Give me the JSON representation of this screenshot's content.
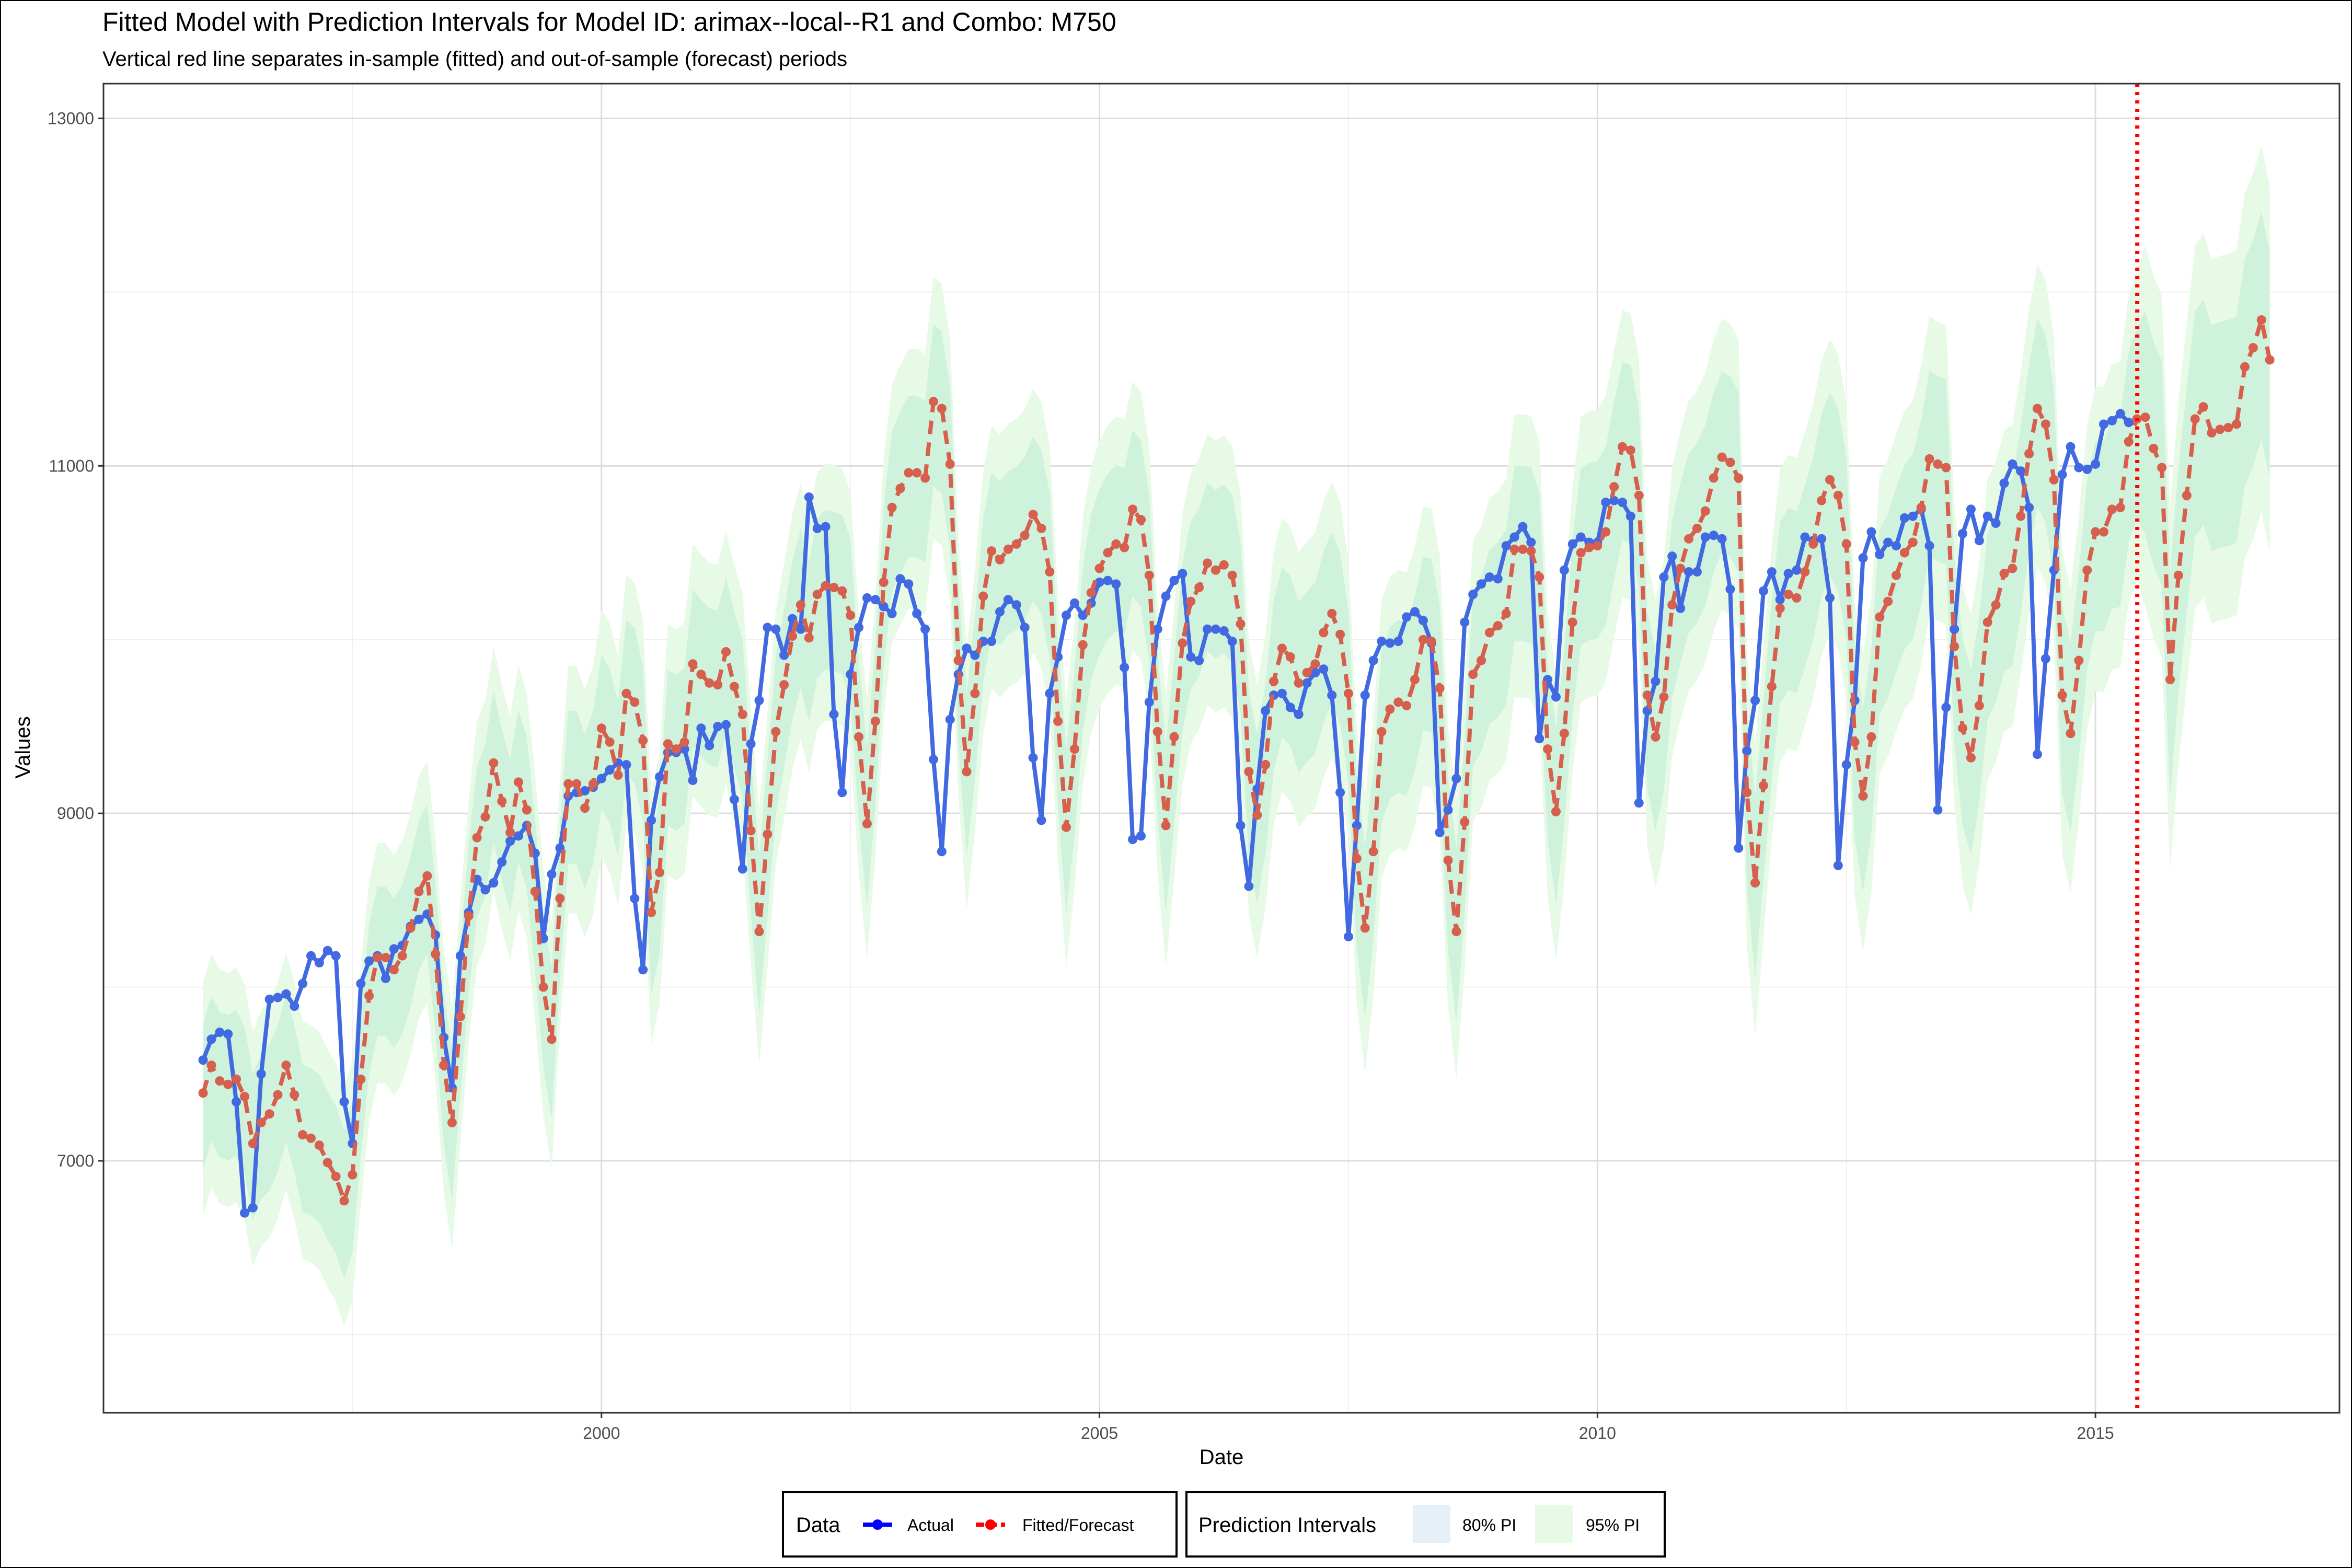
{
  "chart_data": {
    "type": "line",
    "title": "Fitted Model with Prediction Intervals for Model ID: arimax--local--R1 and Combo: M750",
    "subtitle": "Vertical red line separates in-sample (fitted) and out-of-sample (forecast) periods",
    "xlabel": "Date",
    "ylabel": "Values",
    "x_range": [
      1995.0,
      2017.45
    ],
    "ylim": [
      5550,
      13200
    ],
    "x_ticks": [
      {
        "value": 2000,
        "label": "2000"
      },
      {
        "value": 2005,
        "label": "2005"
      },
      {
        "value": 2010,
        "label": "2010"
      },
      {
        "value": 2015,
        "label": "2015"
      }
    ],
    "y_ticks": [
      {
        "value": 7000,
        "label": "7000"
      },
      {
        "value": 9000,
        "label": "9000"
      },
      {
        "value": 11000,
        "label": "11000"
      },
      {
        "value": 13000,
        "label": "13000"
      }
    ],
    "grid": true,
    "split_date": 2015.42,
    "colors": {
      "actual": "#4169e1",
      "actual_legend": "#0000ff",
      "fitted": "#d6604d",
      "fitted_legend": "#ff0000",
      "pi80": "#e6f0f8",
      "pi95": "#e6fae6",
      "band_fill": "#c9f0d8",
      "split_line": "#ff0000"
    },
    "legend": {
      "placement": "bottom",
      "data_title": "Data",
      "actual_label": "Actual",
      "fitted_label": "Fitted/Forecast",
      "pi_title": "Prediction Intervals",
      "pi80_label": "80% PI",
      "pi95_label": "95% PI"
    },
    "actual_start": 1996.0,
    "actual": [
      7580,
      7700,
      7740,
      7730,
      7340,
      6700,
      6730,
      7500,
      7930,
      7940,
      7960,
      7890,
      8020,
      8180,
      8140,
      8210,
      8180,
      7340,
      7100,
      8020,
      8150,
      8180,
      8050,
      8220,
      8240,
      8350,
      8390,
      8420,
      8300,
      7710,
      7420,
      8180,
      8430,
      8620,
      8560,
      8600,
      8720,
      8840,
      8870,
      8930,
      8770,
      8280,
      8650,
      8800,
      9100,
      9120,
      9130,
      9150,
      9200,
      9250,
      9290,
      9280,
      8510,
      8100,
      8960,
      9210,
      9350,
      9350,
      9370,
      9190,
      9490,
      9390,
      9500,
      9510,
      9080,
      8680,
      9400,
      9650,
      10070,
      10060,
      9910,
      10120,
      10060,
      10820,
      10640,
      10650,
      9570,
      9120,
      9800,
      10070,
      10240,
      10230,
      10190,
      10150,
      10350,
      10320,
      10150,
      10060,
      9310,
      8780,
      9540,
      9800,
      9950,
      9910,
      9990,
      9990,
      10160,
      10230,
      10200,
      10070,
      9320,
      8960,
      9690,
      9900,
      10140,
      10210,
      10140,
      10210,
      10330,
      10340,
      10320,
      9840,
      8850,
      8870,
      9640,
      10060,
      10250,
      10340,
      10380,
      9900,
      9880,
      10060,
      10060,
      10050,
      9990,
      8930,
      8580,
      9140,
      9590,
      9680,
      9690,
      9610,
      9570,
      9750,
      9810,
      9830,
      9680,
      9120,
      8290,
      8930,
      9680,
      9880,
      9990,
      9980,
      9990,
      10130,
      10160,
      10110,
      9980,
      8890,
      9020,
      9200,
      10100,
      10260,
      10320,
      10360,
      10350,
      10540,
      10590,
      10650,
      10560,
      9430,
      9770,
      9670,
      10400,
      10550,
      10590,
      10560,
      10560,
      10790,
      10800,
      10790,
      10710,
      9060,
      9590,
      9760,
      10360,
      10480,
      10180,
      10390,
      10390,
      10590,
      10600,
      10580,
      10290,
      8800,
      9360,
      9650,
      10280,
      10390,
      10230,
      10380,
      10400,
      10590,
      10570,
      10580,
      10240,
      8700,
      9280,
      9650,
      10470,
      10620,
      10490,
      10560,
      10540,
      10700,
      10710,
      10750,
      10540,
      9020,
      9610,
      10060,
      10610,
      10750,
      10570,
      10710,
      10670,
      10900,
      11010,
      10970,
      10760,
      9340,
      9890,
      10400,
      10950,
      11110,
      10990,
      10980,
      11010,
      11240,
      11260,
      11300,
      11250
    ],
    "fitted_start": 1996.0,
    "fitted": [
      7390,
      7550,
      7460,
      7440,
      7470,
      7370,
      7100,
      7220,
      7270,
      7380,
      7550,
      7380,
      7150,
      7130,
      7090,
      6990,
      6910,
      6770,
      6920,
      7470,
      7950,
      8170,
      8170,
      8100,
      8180,
      8340,
      8550,
      8640,
      8190,
      7550,
      7220,
      7830,
      8410,
      8860,
      8980,
      9290,
      9070,
      8890,
      9180,
      9020,
      8550,
      8000,
      7700,
      8510,
      9170,
      9170,
      9030,
      9170,
      9490,
      9410,
      9220,
      9690,
      9640,
      9420,
      8430,
      8660,
      9400,
      9370,
      9410,
      9860,
      9800,
      9750,
      9740,
      9930,
      9730,
      9570,
      8900,
      8320,
      8880,
      9470,
      9740,
      10020,
      10200,
      10010,
      10260,
      10310,
      10300,
      10280,
      10140,
      9440,
      8940,
      9530,
      10330,
      10760,
      10870,
      10960,
      10960,
      10930,
      11370,
      11330,
      11010,
      9880,
      9240,
      9690,
      10250,
      10510,
      10460,
      10520,
      10550,
      10600,
      10720,
      10640,
      10390,
      9530,
      8920,
      9370,
      9970,
      10270,
      10410,
      10500,
      10550,
      10530,
      10750,
      10690,
      10370,
      9470,
      8930,
      9440,
      9980,
      10220,
      10300,
      10440,
      10400,
      10430,
      10370,
      10090,
      9240,
      8990,
      9280,
      9760,
      9950,
      9900,
      9750,
      9810,
      9860,
      10040,
      10150,
      10030,
      9690,
      8740,
      8340,
      8780,
      9470,
      9600,
      9640,
      9620,
      9770,
      10000,
      9990,
      9720,
      8730,
      8320,
      8950,
      9800,
      9880,
      10040,
      10080,
      10150,
      10520,
      10520,
      10510,
      10360,
      9370,
      9010,
      9460,
      10100,
      10500,
      10530,
      10540,
      10620,
      10880,
      11110,
      11090,
      10830,
      9680,
      9440,
      9670,
      10200,
      10410,
      10580,
      10640,
      10740,
      10930,
      11050,
      11020,
      10930,
      9120,
      8600,
      9160,
      9730,
      10180,
      10260,
      10240,
      10390,
      10550,
      10800,
      10920,
      10830,
      10550,
      9410,
      9100,
      9440,
      10130,
      10220,
      10370,
      10500,
      10560,
      10760,
      11040,
      11010,
      10990,
      9960,
      9490,
      9320,
      9620,
      10100,
      10200,
      10380,
      10410,
      10710,
      11070,
      11330,
      11240,
      10920,
      9680,
      9460,
      9880,
      10400,
      10620,
      10620,
      10750,
      10760,
      11140,
      11270,
      11280,
      11100,
      10990,
      9770,
      10370,
      10830,
      11270,
      11340,
      11190,
      11210,
      11220,
      11240,
      11570,
      11680,
      11840,
      11610
    ]
  }
}
